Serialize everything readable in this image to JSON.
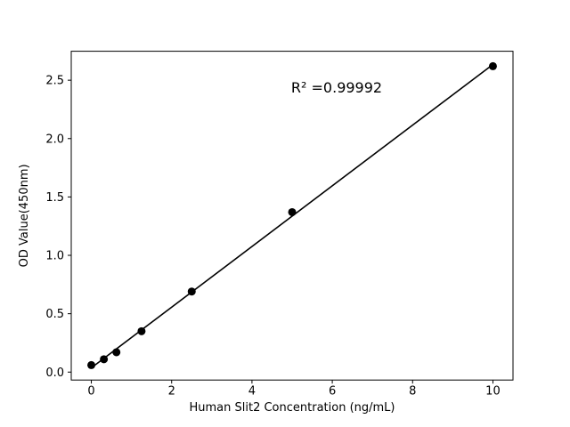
{
  "figure": {
    "background": "#ffffff"
  },
  "chart_data": {
    "type": "scatter",
    "title": "",
    "xlabel": "Human Slit2 Concentration (ng/mL)",
    "ylabel": "OD Value(450nm)",
    "annotation": "R² =0.99992",
    "x": [
      0,
      0.3125,
      0.625,
      1.25,
      2.5,
      5,
      10
    ],
    "y": [
      0.06,
      0.11,
      0.17,
      0.35,
      0.69,
      1.37,
      2.62
    ],
    "fit": "linear",
    "xlim": [
      -0.5,
      10.5
    ],
    "ylim": [
      -0.068,
      2.748
    ],
    "xticks": [
      0,
      2,
      4,
      6,
      8,
      10
    ],
    "xtick_labels": [
      "0",
      "2",
      "4",
      "6",
      "8",
      "10"
    ],
    "yticks": [
      0.0,
      0.5,
      1.0,
      1.5,
      2.0,
      2.5
    ],
    "ytick_labels": [
      "0.0",
      "0.5",
      "1.0",
      "1.5",
      "2.0",
      "2.5"
    ],
    "marker_color": "#000000",
    "line_color": "#000000",
    "frame_color": "#000000",
    "grid": false,
    "legend": "none"
  }
}
